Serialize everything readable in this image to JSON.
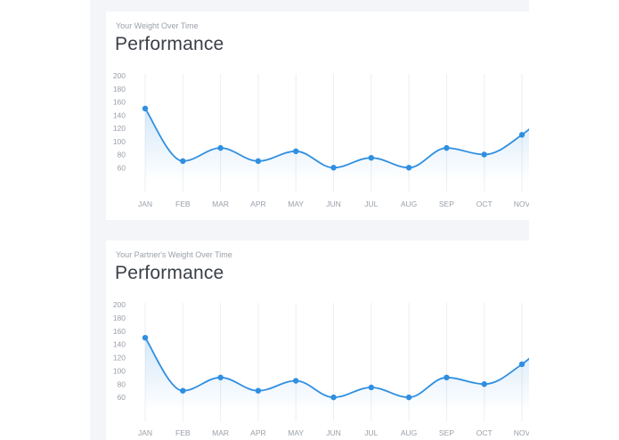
{
  "charts": [
    {
      "subtitle": "Your Weight Over Time",
      "title": "Performance"
    },
    {
      "subtitle": "Your Partner's Weight Over Time",
      "title": "Performance"
    }
  ],
  "colors": {
    "line": "#2f8fe0",
    "point": "#2f8fe0",
    "fill": "#2f8fe0",
    "grid": "#eceef2",
    "tick_text": "#9aa0a8",
    "panel_bg": "#f3f5f9",
    "card_bg": "#ffffff"
  },
  "chart_data": [
    {
      "type": "line",
      "title": "Performance",
      "subtitle": "Your Weight Over Time",
      "categories": [
        "JAN",
        "FEB",
        "MAR",
        "APR",
        "MAY",
        "JUN",
        "JUL",
        "AUG",
        "SEP",
        "OCT",
        "NOV"
      ],
      "values": [
        150,
        70,
        90,
        70,
        85,
        60,
        75,
        60,
        90,
        80,
        110
      ],
      "yticks": [
        60,
        80,
        100,
        120,
        140,
        160,
        180,
        200
      ],
      "ylim": [
        40,
        200
      ],
      "grid": "vertical",
      "curve": "smooth",
      "area_fill": true,
      "legend": "none"
    },
    {
      "type": "line",
      "title": "Performance",
      "subtitle": "Your Partner's Weight Over Time",
      "categories": [
        "JAN",
        "FEB",
        "MAR",
        "APR",
        "MAY",
        "JUN",
        "JUL",
        "AUG",
        "SEP",
        "OCT",
        "NOV"
      ],
      "values": [
        150,
        70,
        90,
        70,
        85,
        60,
        75,
        60,
        90,
        80,
        110
      ],
      "yticks": [
        60,
        80,
        100,
        120,
        140,
        160,
        180,
        200
      ],
      "ylim": [
        40,
        200
      ],
      "grid": "vertical",
      "curve": "smooth",
      "area_fill": true,
      "legend": "none"
    }
  ]
}
